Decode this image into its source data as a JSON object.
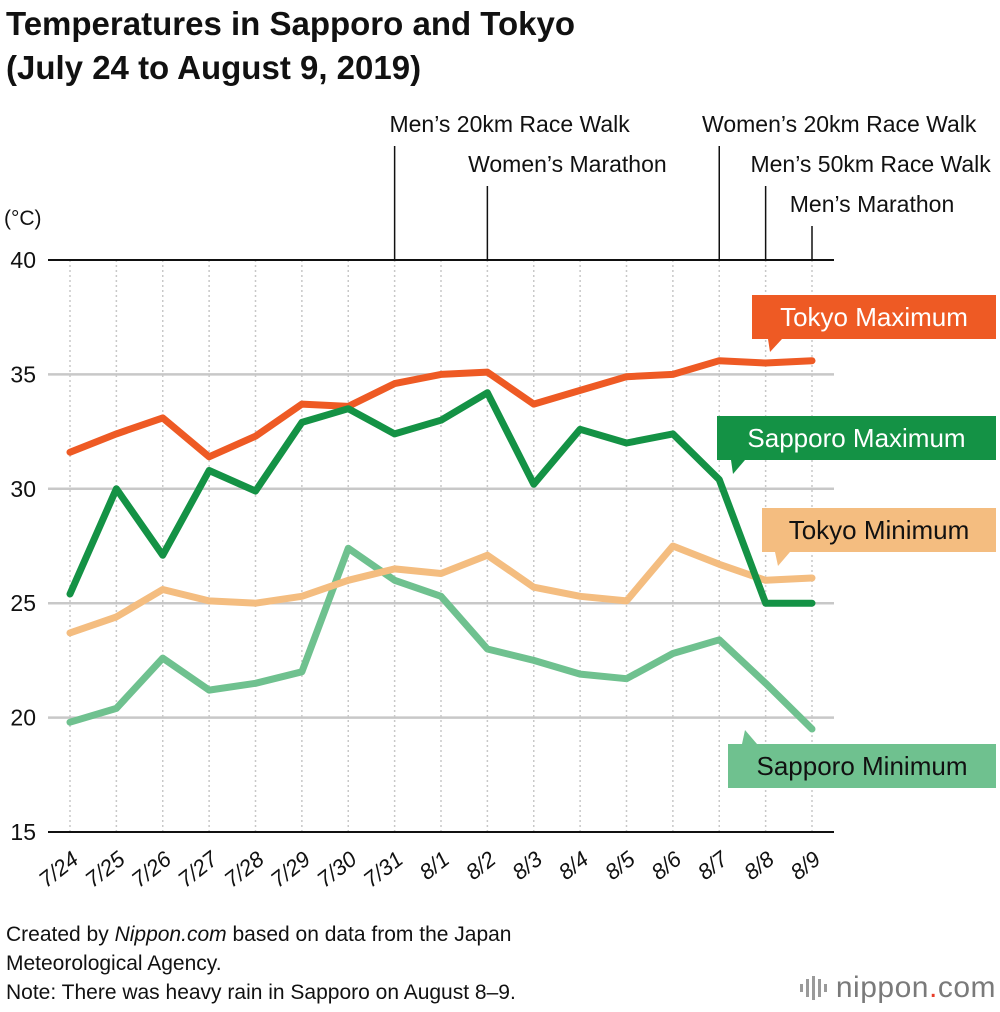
{
  "title_line1": "Temperatures in Sapporo and Tokyo",
  "title_line2": "(July 24 to August 9, 2019)",
  "footer": {
    "line1_pre": "Created by ",
    "line1_source": "Nippon.com",
    "line1_post": " based on data from the Japan",
    "line2": "Meteorological Agency.",
    "note": "Note: There was heavy rain in Sapporo on August 8–9."
  },
  "logo": {
    "name": "nippon",
    "dot": ".",
    "tld": "com",
    "icon": "bars-logo-icon"
  },
  "chart_data": {
    "type": "line",
    "ylabel": "(°C)",
    "ylim": [
      15,
      40
    ],
    "yticks": [
      15,
      20,
      25,
      30,
      35,
      40
    ],
    "grid": "vertical-dotted",
    "categories": [
      "7/24",
      "7/25",
      "7/26",
      "7/27",
      "7/28",
      "7/29",
      "7/30",
      "7/31",
      "8/1",
      "8/2",
      "8/3",
      "8/4",
      "8/5",
      "8/6",
      "8/7",
      "8/8",
      "8/9"
    ],
    "series": [
      {
        "name": "Tokyo Maximum",
        "color": "#ee5a24",
        "values": [
          31.6,
          32.4,
          33.1,
          31.4,
          32.3,
          33.7,
          33.6,
          34.6,
          35.0,
          35.1,
          33.7,
          34.3,
          34.9,
          35.0,
          35.6,
          35.5,
          35.6
        ]
      },
      {
        "name": "Sapporo Maximum",
        "color": "#149245",
        "values": [
          25.4,
          30.0,
          27.1,
          30.8,
          29.9,
          32.9,
          33.5,
          32.4,
          33.0,
          34.2,
          30.2,
          32.6,
          32.0,
          32.4,
          30.4,
          25.0,
          25.0
        ]
      },
      {
        "name": "Tokyo Minimum",
        "color": "#f4bd80",
        "values": [
          23.7,
          24.4,
          25.6,
          25.1,
          25.0,
          25.3,
          26.0,
          26.5,
          26.3,
          27.1,
          25.7,
          25.3,
          25.1,
          27.5,
          26.7,
          26.0,
          26.1
        ]
      },
      {
        "name": "Sapporo Minimum",
        "color": "#6fc18f",
        "values": [
          19.8,
          20.4,
          22.6,
          21.2,
          21.5,
          22.0,
          27.4,
          26.0,
          25.3,
          23.0,
          22.5,
          21.9,
          21.7,
          22.8,
          23.4,
          21.5,
          19.5
        ]
      }
    ],
    "legend_labels": [
      {
        "series": "Tokyo Maximum",
        "text": "Tokyo Maximum",
        "bg": "#ee5a24",
        "fg": "#ffffff"
      },
      {
        "series": "Sapporo Maximum",
        "text": "Sapporo Maximum",
        "bg": "#149245",
        "fg": "#ffffff"
      },
      {
        "series": "Tokyo Minimum",
        "text": "Tokyo Minimum",
        "bg": "#f4bd80",
        "fg": "#111111"
      },
      {
        "series": "Sapporo Minimum",
        "text": "Sapporo Minimum",
        "bg": "#6fc18f",
        "fg": "#111111"
      }
    ],
    "events": [
      {
        "date": "7/31",
        "label": "Men’s 20km Race Walk"
      },
      {
        "date": "8/2",
        "label": "Women’s Marathon"
      },
      {
        "date": "8/7",
        "label": "Women’s 20km Race Walk"
      },
      {
        "date": "8/8",
        "label": "Men’s 50km Race Walk"
      },
      {
        "date": "8/9",
        "label": "Men’s Marathon"
      }
    ]
  }
}
